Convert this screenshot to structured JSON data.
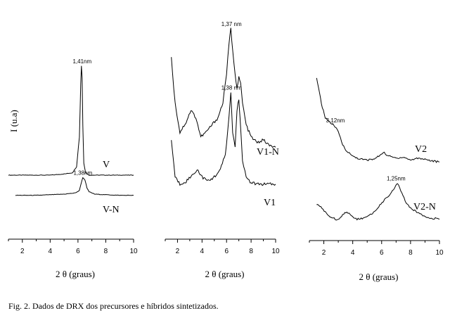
{
  "figure": {
    "y_axis_label": "I (u.a)",
    "caption": "Fig. 2. Dados de DRX dos precursores e híbridos sintetizados."
  },
  "chart_data": [
    {
      "type": "line",
      "xlabel": "2 θ (graus)",
      "xlim": [
        1,
        10
      ],
      "xticks": [
        2,
        4,
        6,
        8,
        10
      ],
      "grid": false,
      "series": [
        {
          "name": "V",
          "x": [
            1,
            2,
            3,
            4,
            5,
            5.6,
            5.9,
            6.1,
            6.2,
            6.25,
            6.3,
            6.35,
            6.42,
            6.55,
            6.8,
            7.5,
            8,
            9,
            10
          ],
          "y": [
            0.08,
            0.08,
            0.08,
            0.08,
            0.09,
            0.1,
            0.15,
            0.4,
            0.85,
            1.0,
            0.9,
            0.5,
            0.18,
            0.1,
            0.08,
            0.08,
            0.08,
            0.08,
            0.08
          ]
        },
        {
          "name": "V-N",
          "x": [
            1.5,
            3,
            4,
            5,
            5.8,
            6.1,
            6.25,
            6.35,
            6.5,
            6.65,
            6.8,
            7.2,
            8,
            9,
            10
          ],
          "y": [
            -0.09,
            -0.09,
            -0.085,
            -0.08,
            -0.07,
            -0.05,
            0.02,
            0.06,
            0.04,
            -0.03,
            -0.06,
            -0.08,
            -0.085,
            -0.09,
            -0.09
          ]
        }
      ],
      "annotations": [
        {
          "text": "1,41nm",
          "x": 6.3,
          "y": 1.0
        },
        {
          "text": "1,38nm",
          "x": 6.35,
          "y": 0.06
        }
      ]
    },
    {
      "type": "line",
      "xlabel": "2 θ (graus)",
      "xlim": [
        1,
        10
      ],
      "xticks": [
        2,
        4,
        6,
        8,
        10
      ],
      "grid": false,
      "series": [
        {
          "name": "V1-N",
          "x": [
            1.5,
            1.8,
            2.2,
            2.7,
            3.1,
            3.5,
            3.9,
            4.3,
            4.8,
            5.3,
            5.7,
            6.0,
            6.2,
            6.35,
            6.5,
            6.7,
            6.85,
            7.0,
            7.15,
            7.3,
            7.6,
            8,
            8.5,
            9,
            9.5,
            10
          ],
          "y": [
            0.85,
            0.55,
            0.35,
            0.42,
            0.5,
            0.45,
            0.32,
            0.35,
            0.4,
            0.45,
            0.55,
            0.75,
            0.95,
            1.05,
            0.9,
            0.75,
            0.65,
            0.72,
            0.68,
            0.55,
            0.4,
            0.32,
            0.28,
            0.3,
            0.26,
            0.25
          ]
        },
        {
          "name": "V1",
          "x": [
            1.5,
            1.8,
            2.2,
            2.7,
            3.2,
            3.6,
            4.0,
            4.5,
            5.0,
            5.5,
            5.9,
            6.2,
            6.35,
            6.5,
            6.7,
            6.85,
            7.0,
            7.1,
            7.3,
            7.6,
            8,
            8.5,
            9,
            9.5,
            10
          ],
          "y": [
            0.3,
            0.05,
            0.0,
            0.02,
            0.06,
            0.1,
            0.05,
            0.02,
            0.05,
            0.1,
            0.2,
            0.45,
            0.62,
            0.35,
            0.25,
            0.5,
            0.58,
            0.45,
            0.15,
            0.05,
            0.01,
            0.0,
            0.0,
            0.0,
            0.0
          ]
        }
      ],
      "annotations": [
        {
          "text": "1,37 nm",
          "x": 6.4,
          "y": 1.05
        },
        {
          "text": "1,38 nm",
          "x": 6.4,
          "y": 0.62
        }
      ]
    },
    {
      "type": "line",
      "xlabel": "2 θ (graus)",
      "xlim": [
        1,
        10
      ],
      "xticks": [
        2,
        4,
        6,
        8,
        10
      ],
      "grid": false,
      "series": [
        {
          "name": "V2",
          "x": [
            1.5,
            1.7,
            1.9,
            2.1,
            2.4,
            2.7,
            3.0,
            3.3,
            3.6,
            4.0,
            4.5,
            5.0,
            5.5,
            5.8,
            6.1,
            6.5,
            7.0,
            7.5,
            8.0,
            8.5,
            9.0,
            9.5,
            10
          ],
          "y": [
            1.0,
            0.85,
            0.7,
            0.6,
            0.55,
            0.52,
            0.45,
            0.32,
            0.25,
            0.2,
            0.17,
            0.16,
            0.17,
            0.2,
            0.24,
            0.2,
            0.18,
            0.19,
            0.16,
            0.18,
            0.17,
            0.15,
            0.14
          ]
        },
        {
          "name": "V2-N",
          "x": [
            1.5,
            1.8,
            2.1,
            2.5,
            3.0,
            3.3,
            3.6,
            3.9,
            4.3,
            4.8,
            5.3,
            5.8,
            6.2,
            6.6,
            6.9,
            7.1,
            7.4,
            7.7,
            8.0,
            8.5,
            9.0,
            9.5,
            10
          ],
          "y": [
            -0.3,
            -0.32,
            -0.38,
            -0.43,
            -0.46,
            -0.4,
            -0.37,
            -0.42,
            -0.45,
            -0.44,
            -0.4,
            -0.32,
            -0.25,
            -0.2,
            -0.12,
            -0.08,
            -0.18,
            -0.28,
            -0.34,
            -0.38,
            -0.42,
            -0.44,
            -0.45
          ]
        }
      ],
      "annotations": [
        {
          "text": "3,12nm",
          "x": 2.8,
          "y": 0.52
        },
        {
          "text": "1,25nm",
          "x": 7.0,
          "y": -0.08
        }
      ]
    }
  ]
}
